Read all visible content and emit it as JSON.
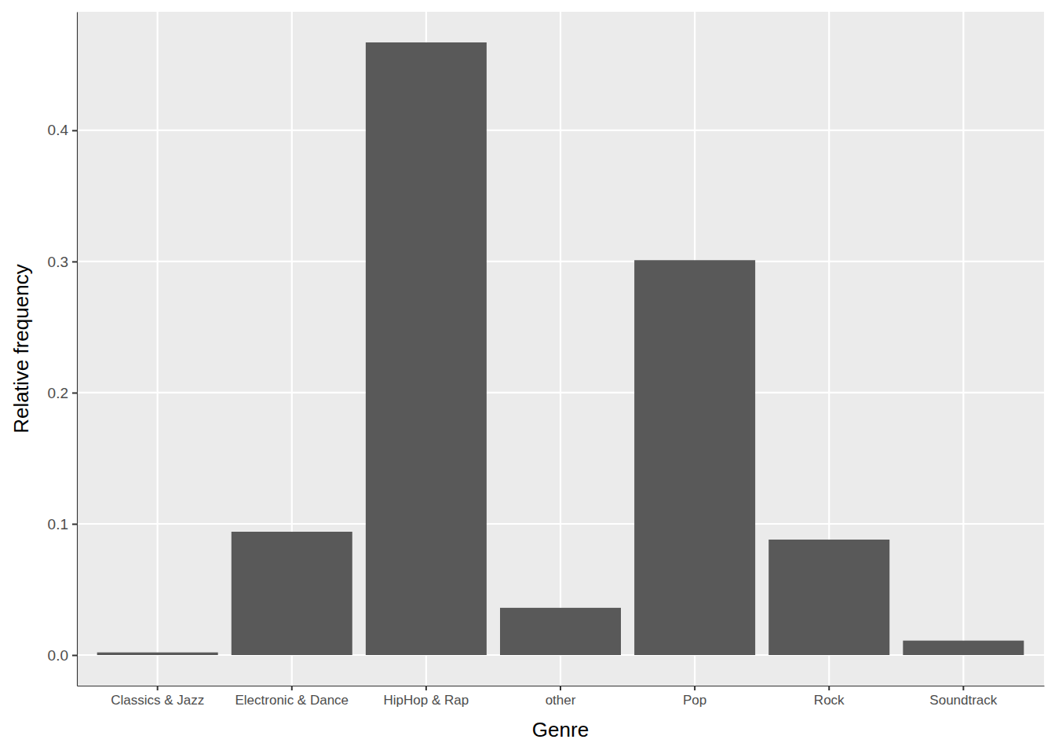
{
  "chart_data": {
    "type": "bar",
    "categories": [
      "Classics & Jazz",
      "Electronic & Dance",
      "HipHop & Rap",
      "other",
      "Pop",
      "Rock",
      "Soundtrack"
    ],
    "values": [
      0.002,
      0.094,
      0.467,
      0.036,
      0.301,
      0.088,
      0.011
    ],
    "color": "#595959",
    "x_label": "Genre",
    "y_label": "Relative frequency",
    "ylim": [
      -0.02335,
      0.49035
    ],
    "yticks": [
      {
        "value": 0,
        "label": "0.0"
      },
      {
        "value": 0.1,
        "label": "0.1"
      },
      {
        "value": 0.2,
        "label": "0.2"
      },
      {
        "value": 0.3,
        "label": "0.3"
      },
      {
        "value": 0.4,
        "label": "0.4"
      }
    ],
    "grid": true
  }
}
